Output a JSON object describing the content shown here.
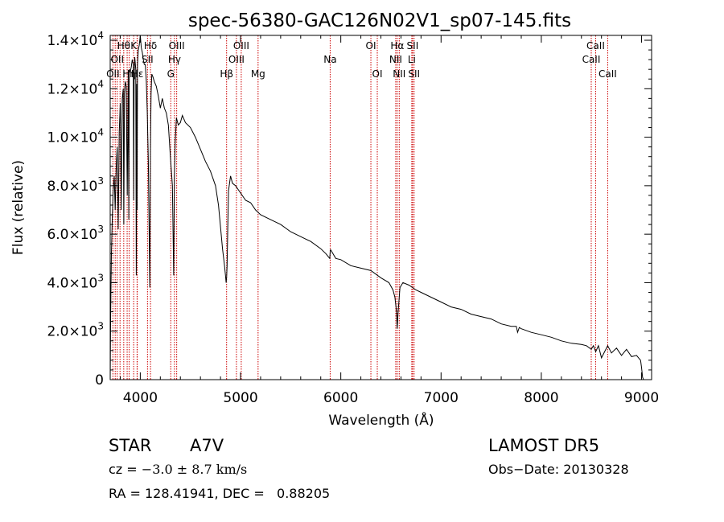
{
  "chart_data": {
    "type": "line",
    "title": "spec-56380-GAC126N02V1_sp07-145.fits",
    "xlabel": "Wavelength (Å)",
    "ylabel": "Flux (relative)",
    "xlim": [
      3700,
      9100
    ],
    "ylim": [
      0,
      14200
    ],
    "x_ticks": [
      {
        "value": 4000,
        "label": "4000"
      },
      {
        "value": 5000,
        "label": "5000"
      },
      {
        "value": 6000,
        "label": "6000"
      },
      {
        "value": 7000,
        "label": "7000"
      },
      {
        "value": 8000,
        "label": "8000"
      },
      {
        "value": 9000,
        "label": "9000"
      }
    ],
    "y_ticks": [
      {
        "value": 0,
        "mant": "0",
        "exp": ""
      },
      {
        "value": 2000,
        "mant": "2.0×10",
        "exp": "3"
      },
      {
        "value": 4000,
        "mant": "4.0×10",
        "exp": "3"
      },
      {
        "value": 6000,
        "mant": "6.0×10",
        "exp": "3"
      },
      {
        "value": 8000,
        "mant": "8.0×10",
        "exp": "3"
      },
      {
        "value": 10000,
        "mant": "1.0×10",
        "exp": "4"
      },
      {
        "value": 12000,
        "mant": "1.2×10",
        "exp": "4"
      },
      {
        "value": 14000,
        "mant": "1.4×10",
        "exp": "4"
      }
    ],
    "line_color": "#000000",
    "marker_color": "#cc0000",
    "series": [
      {
        "x": [
          3700,
          3705,
          3712,
          3720,
          3730,
          3740,
          3750,
          3760,
          3770,
          3780,
          3790,
          3800,
          3810,
          3820,
          3830,
          3836,
          3842,
          3850,
          3860,
          3870,
          3880,
          3885,
          3890,
          3900,
          3910,
          3920,
          3930,
          3934,
          3938,
          3945,
          3955,
          3960,
          3965,
          3968,
          3972,
          3980,
          3990,
          4000,
          4010,
          4020,
          4030,
          4040,
          4050,
          4060,
          4070,
          4080,
          4095,
          4101,
          4108,
          4115,
          4125,
          4140,
          4160,
          4180,
          4200,
          4220,
          4240,
          4260,
          4280,
          4300,
          4320,
          4333,
          4340,
          4348,
          4360,
          4380,
          4400,
          4420,
          4450,
          4500,
          4550,
          4600,
          4650,
          4700,
          4750,
          4780,
          4800,
          4820,
          4840,
          4850,
          4856,
          4861,
          4866,
          4872,
          4880,
          4900,
          4920,
          4950,
          5000,
          5050,
          5100,
          5150,
          5200,
          5300,
          5400,
          5500,
          5600,
          5700,
          5800,
          5850,
          5890,
          5895,
          5900,
          5950,
          6000,
          6100,
          6200,
          6300,
          6400,
          6480,
          6520,
          6540,
          6556,
          6563,
          6570,
          6590,
          6620,
          6680,
          6750,
          6800,
          6900,
          7000,
          7100,
          7200,
          7300,
          7400,
          7500,
          7600,
          7700,
          7750,
          7763,
          7780,
          7800,
          7900,
          8000,
          8100,
          8200,
          8300,
          8400,
          8450,
          8498,
          8520,
          8542,
          8570,
          8600,
          8662,
          8700,
          8750,
          8800,
          8850,
          8900,
          8950,
          8990,
          9000,
          9010,
          9020
        ],
        "y": [
          0,
          2800,
          5200,
          6600,
          7800,
          8400,
          7000,
          8800,
          9600,
          6200,
          10200,
          11400,
          7000,
          11600,
          12000,
          6400,
          11800,
          12300,
          12100,
          7600,
          12500,
          6600,
          12800,
          12700,
          12900,
          13200,
          13000,
          7400,
          12400,
          13300,
          12800,
          4300,
          12200,
          7000,
          13000,
          13600,
          13800,
          14200,
          13700,
          13500,
          13200,
          13000,
          13000,
          12300,
          11000,
          9000,
          3800,
          9400,
          11800,
          12600,
          12500,
          12300,
          12100,
          11700,
          11200,
          11600,
          11200,
          11000,
          10500,
          9200,
          8000,
          4300,
          8400,
          9800,
          10800,
          10500,
          10600,
          10900,
          10600,
          10400,
          10000,
          9500,
          9000,
          8600,
          8000,
          7200,
          6300,
          5400,
          4700,
          4300,
          4000,
          4200,
          4700,
          6200,
          7800,
          8400,
          8100,
          8000,
          7700,
          7400,
          7300,
          7000,
          6800,
          6600,
          6400,
          6100,
          5900,
          5700,
          5400,
          5200,
          5000,
          5350,
          5350,
          5000,
          4950,
          4700,
          4600,
          4500,
          4200,
          4000,
          3700,
          3400,
          2800,
          2100,
          2700,
          3800,
          4000,
          3900,
          3700,
          3600,
          3400,
          3200,
          3000,
          2900,
          2700,
          2600,
          2500,
          2300,
          2200,
          2200,
          1950,
          2150,
          2100,
          1950,
          1850,
          1750,
          1600,
          1500,
          1450,
          1400,
          1250,
          1400,
          1150,
          1400,
          900,
          1400,
          1100,
          1300,
          1000,
          1250,
          950,
          1000,
          800,
          500,
          100,
          0
        ]
      }
    ],
    "line_markers": [
      {
        "x": 3727,
        "label": "OII",
        "row": 2
      },
      {
        "x": 3750,
        "label": "",
        "row": 1
      },
      {
        "x": 3770,
        "label": "OII",
        "row": 1
      },
      {
        "x": 3798,
        "label": "",
        "row": 1
      },
      {
        "x": 3835,
        "label": "Hθ",
        "row": 0
      },
      {
        "x": 3869,
        "label": "",
        "row": 0
      },
      {
        "x": 3889,
        "label": "Hη",
        "row": 2
      },
      {
        "x": 3934,
        "label": "K",
        "row": 0
      },
      {
        "x": 3968,
        "label": "",
        "row": 0
      },
      {
        "x": 3970,
        "label": "Hε",
        "row": 2
      },
      {
        "x": 4072,
        "label": "SII",
        "row": 1
      },
      {
        "x": 4102,
        "label": "Hδ",
        "row": 0
      },
      {
        "x": 4304,
        "label": "G",
        "row": 2
      },
      {
        "x": 4341,
        "label": "Hγ",
        "row": 1
      },
      {
        "x": 4363,
        "label": "OIII",
        "row": 0
      },
      {
        "x": 4861,
        "label": "Hβ",
        "row": 2
      },
      {
        "x": 4959,
        "label": "OIII",
        "row": 1
      },
      {
        "x": 5007,
        "label": "OIII",
        "row": 0
      },
      {
        "x": 5175,
        "label": "Mg",
        "row": 2
      },
      {
        "x": 5894,
        "label": "Na",
        "row": 1
      },
      {
        "x": 6300,
        "label": "OI",
        "row": 0
      },
      {
        "x": 6364,
        "label": "OI",
        "row": 2
      },
      {
        "x": 6548,
        "label": "NII",
        "row": 1
      },
      {
        "x": 6563,
        "label": "Hα",
        "row": 0
      },
      {
        "x": 6583,
        "label": "NII",
        "row": 2
      },
      {
        "x": 6708,
        "label": "Li",
        "row": 1
      },
      {
        "x": 6716,
        "label": "SII",
        "row": 0
      },
      {
        "x": 6731,
        "label": "SII",
        "row": 2
      },
      {
        "x": 8498,
        "label": "CaII",
        "row": 1
      },
      {
        "x": 8542,
        "label": "CaII",
        "row": 0
      },
      {
        "x": 8662,
        "label": "CaII",
        "row": 2
      }
    ]
  },
  "info": {
    "object_class": "STAR",
    "subclass": "A7V",
    "survey": "LAMOST DR5",
    "cz_label": "cz = ",
    "cz_value": "−3.0 ± 8.7 km/s",
    "obs_date": "Obs−Date: 20130328",
    "coords": "RA = 128.41941, DEC =   0.88205"
  }
}
